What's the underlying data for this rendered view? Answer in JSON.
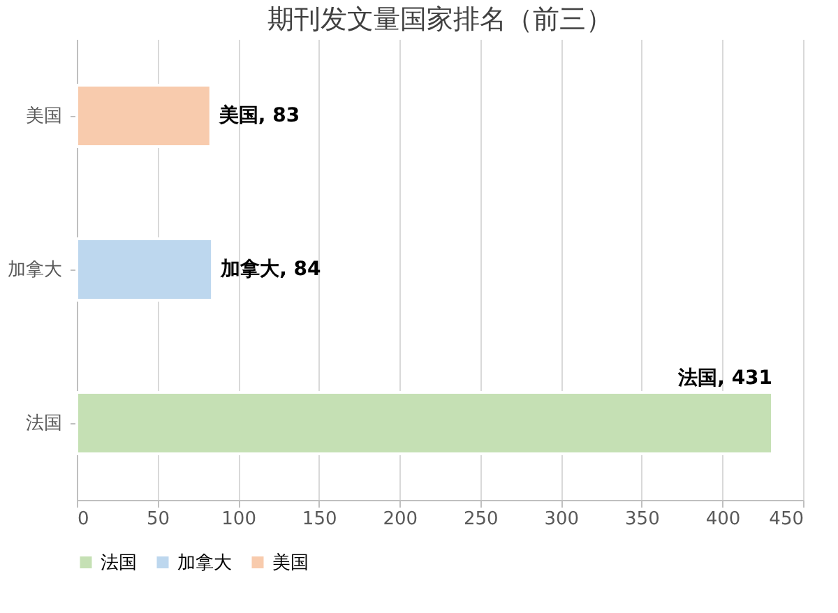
{
  "chart_data": {
    "type": "bar",
    "orientation": "horizontal",
    "title": "期刊发文量国家排名（前三）",
    "categories": [
      "美国",
      "加拿大",
      "法国"
    ],
    "series": [
      {
        "name": "法国",
        "color": "#c5e0b4",
        "values": [
          null,
          null,
          431
        ],
        "value_labels": [
          null,
          null,
          "法国, 431"
        ]
      },
      {
        "name": "加拿大",
        "color": "#bdd7ee",
        "values": [
          null,
          84,
          null
        ],
        "value_labels": [
          null,
          "加拿大, 84",
          null
        ]
      },
      {
        "name": "美国",
        "color": "#f8cbad",
        "values": [
          83,
          null,
          null
        ],
        "value_labels": [
          "美国, 83",
          null,
          null
        ]
      }
    ],
    "xlim": [
      0,
      450
    ],
    "xticks": [
      0,
      50,
      100,
      150,
      200,
      250,
      300,
      350,
      400,
      450
    ],
    "grid": "x",
    "legend": "bottom"
  }
}
